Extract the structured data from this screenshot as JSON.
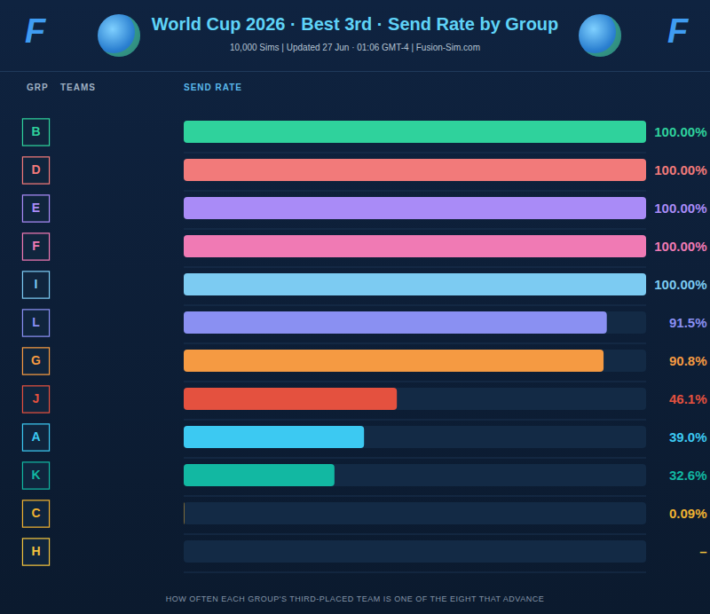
{
  "chart_data": {
    "type": "bar",
    "orientation": "horizontal",
    "title": "World Cup 2026 · Best 3rd · Send Rate by Group",
    "subtitle": "10,000 Sims | Updated 27 Jun · 01:06 GMT-4 | Fusion-Sim.com",
    "logo_text": "F",
    "column_heads": [
      "GRP",
      "TEAMS",
      "SEND RATE"
    ],
    "caption": "HOW OFTEN EACH GROUP'S THIRD-PLACED TEAM IS ONE OF THE EIGHT THAT ADVANCE",
    "categories": [
      "B",
      "D",
      "E",
      "F",
      "I",
      "L",
      "G",
      "J",
      "A",
      "K",
      "C",
      "H"
    ],
    "values": [
      100,
      100,
      100,
      100,
      100,
      91.5,
      90.8,
      46.1,
      39.0,
      32.6,
      0.09,
      0
    ],
    "value_labels": [
      "100.00%",
      "100.00%",
      "100.00%",
      "100.00%",
      "100.00%",
      "91.5%",
      "90.8%",
      "46.1%",
      "39.0%",
      "32.6%",
      "0.09%",
      "–"
    ],
    "colors": [
      "#2fd29c",
      "#f27a7a",
      "#a98bf7",
      "#f07ab4",
      "#7ccbf2",
      "#8a90f2",
      "#f59a42",
      "#e4513f",
      "#3cc9f2",
      "#12b8a2",
      "#f0b232",
      "#f0c23e"
    ],
    "xlim": [
      0,
      100
    ],
    "tick_labels": false,
    "grid": false,
    "data_labels": true
  }
}
